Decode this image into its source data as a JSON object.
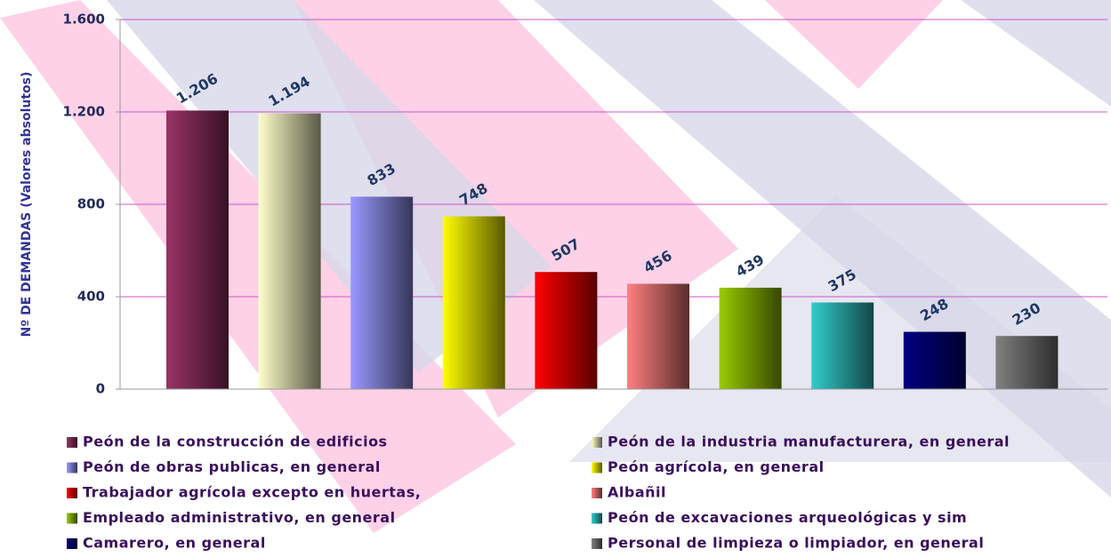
{
  "chart_data": {
    "type": "bar",
    "y_label": "Nº DE DEMANDAS (Valores absolutos)",
    "ylim": [
      0,
      1600
    ],
    "yticks": [
      0,
      400,
      800,
      {
        "value": 1200,
        "label": "1.200"
      },
      {
        "value": 1600,
        "label": "1.600"
      }
    ],
    "grid": true,
    "series": [
      {
        "name": "Peón de la construcción de edificios",
        "color": "#993366",
        "values": [
          1206
        ],
        "value_labels": [
          "1.206"
        ]
      },
      {
        "name": "Peón de la industria manufacturera, en general",
        "color": "#ffffcc",
        "values": [
          1194
        ],
        "value_labels": [
          "1.194"
        ]
      },
      {
        "name": "Peón de obras publicas, en general",
        "color": "#9999ff",
        "values": [
          833
        ]
      },
      {
        "name": "Peón agrícola, en general",
        "color": "#ffff00",
        "values": [
          748
        ]
      },
      {
        "name": "Trabajador agrícola excepto en huertas,",
        "color": "#ff0000",
        "values": [
          507
        ]
      },
      {
        "name": "Albañil",
        "color": "#ff8080",
        "values": [
          456
        ]
      },
      {
        "name": "Empleado administrativo, en general",
        "color": "#99cc00",
        "values": [
          439
        ]
      },
      {
        "name": "Peón de excavaciones arqueológicas y sim",
        "color": "#33cccc",
        "values": [
          375
        ]
      },
      {
        "name": "Camarero, en general",
        "color": "#000080",
        "values": [
          248
        ]
      },
      {
        "name": "Personal de limpieza o limpiador, en general",
        "color": "#808080",
        "values": [
          230
        ]
      }
    ]
  }
}
